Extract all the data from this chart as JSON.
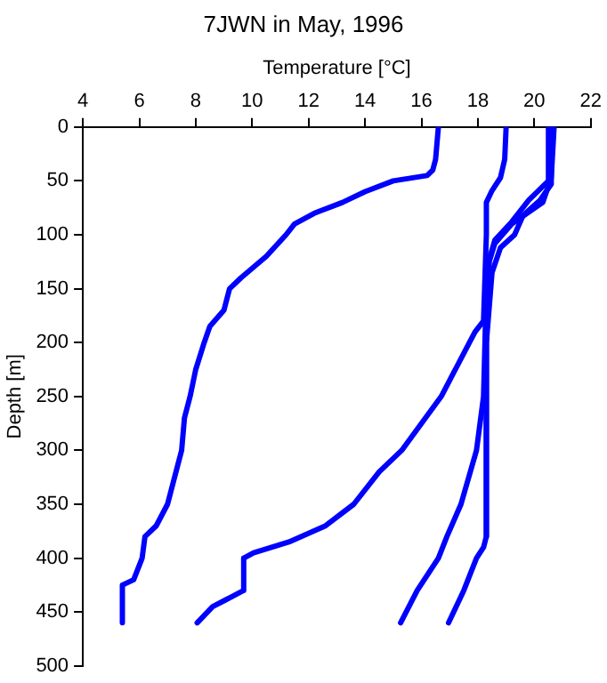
{
  "chart_data": {
    "type": "line",
    "title": "7JWN in May, 1996",
    "xlabel": "Temperature [°C]",
    "ylabel": "Depth [m]",
    "xlim": [
      4,
      22
    ],
    "xticks": [
      4,
      6,
      8,
      10,
      12,
      14,
      16,
      18,
      20,
      22
    ],
    "ylim": [
      500,
      0
    ],
    "yticks": [
      0,
      50,
      100,
      150,
      200,
      250,
      300,
      350,
      400,
      450,
      500
    ],
    "grid": false,
    "legend": false,
    "marker": "none",
    "line_style": "solid",
    "series": [
      {
        "color": "#0000ff",
        "x": [
          16.6,
          16.5,
          16.4,
          16.2,
          15,
          14,
          13.2,
          12.2,
          11.5,
          11.2,
          10.5,
          9.6,
          9.2,
          9,
          8.5,
          8.3,
          8,
          7.8,
          7.6,
          7.5,
          7.2,
          7,
          6.6,
          6.2,
          6.1,
          5.8,
          5.4,
          5.4
        ],
        "values": [
          0,
          30,
          40,
          45,
          50,
          60,
          70,
          80,
          90,
          100,
          120,
          140,
          150,
          170,
          185,
          200,
          225,
          250,
          270,
          300,
          330,
          350,
          370,
          380,
          400,
          420,
          425,
          460
        ]
      },
      {
        "color": "#0000ff",
        "x": [
          19,
          18.95,
          18.8,
          18.5,
          18.3,
          18.3,
          18.2,
          17.9,
          17.7,
          16.7,
          15.3,
          14.5,
          13.6,
          12.6,
          11.3,
          10.05,
          9.7,
          9.7,
          8.6,
          8.05
        ],
        "values": [
          0,
          30,
          47,
          59,
          70,
          100,
          180,
          190,
          200,
          250,
          300,
          320,
          350,
          370,
          385,
          395,
          400,
          430,
          445,
          460
        ]
      },
      {
        "color": "#0000ff",
        "x": [
          20.5,
          20.5,
          19.8,
          19.2,
          18.6,
          18.4,
          18.3,
          18.2,
          17.95,
          17.4,
          16.9,
          16.6,
          15.85,
          15.26
        ],
        "values": [
          0,
          50,
          68,
          88,
          105,
          123,
          150,
          250,
          300,
          350,
          380,
          400,
          430,
          460
        ]
      },
      {
        "color": "#0000ff",
        "x": [
          20.6,
          20.6,
          20.2,
          19.6,
          19.3,
          18.8,
          18.5,
          18.3,
          18.3,
          18.2,
          17.95,
          17.5,
          16.96
        ],
        "values": [
          0,
          53,
          68,
          82,
          100,
          112,
          135,
          200,
          380,
          390,
          400,
          430,
          460
        ]
      },
      {
        "color": "#0000ff",
        "x": [
          20.7,
          20.6,
          20.3,
          19.2,
          18.6,
          18.4,
          18.3,
          18.3
        ],
        "values": [
          0,
          47,
          70,
          90,
          108,
          125,
          200,
          380
        ]
      }
    ]
  }
}
